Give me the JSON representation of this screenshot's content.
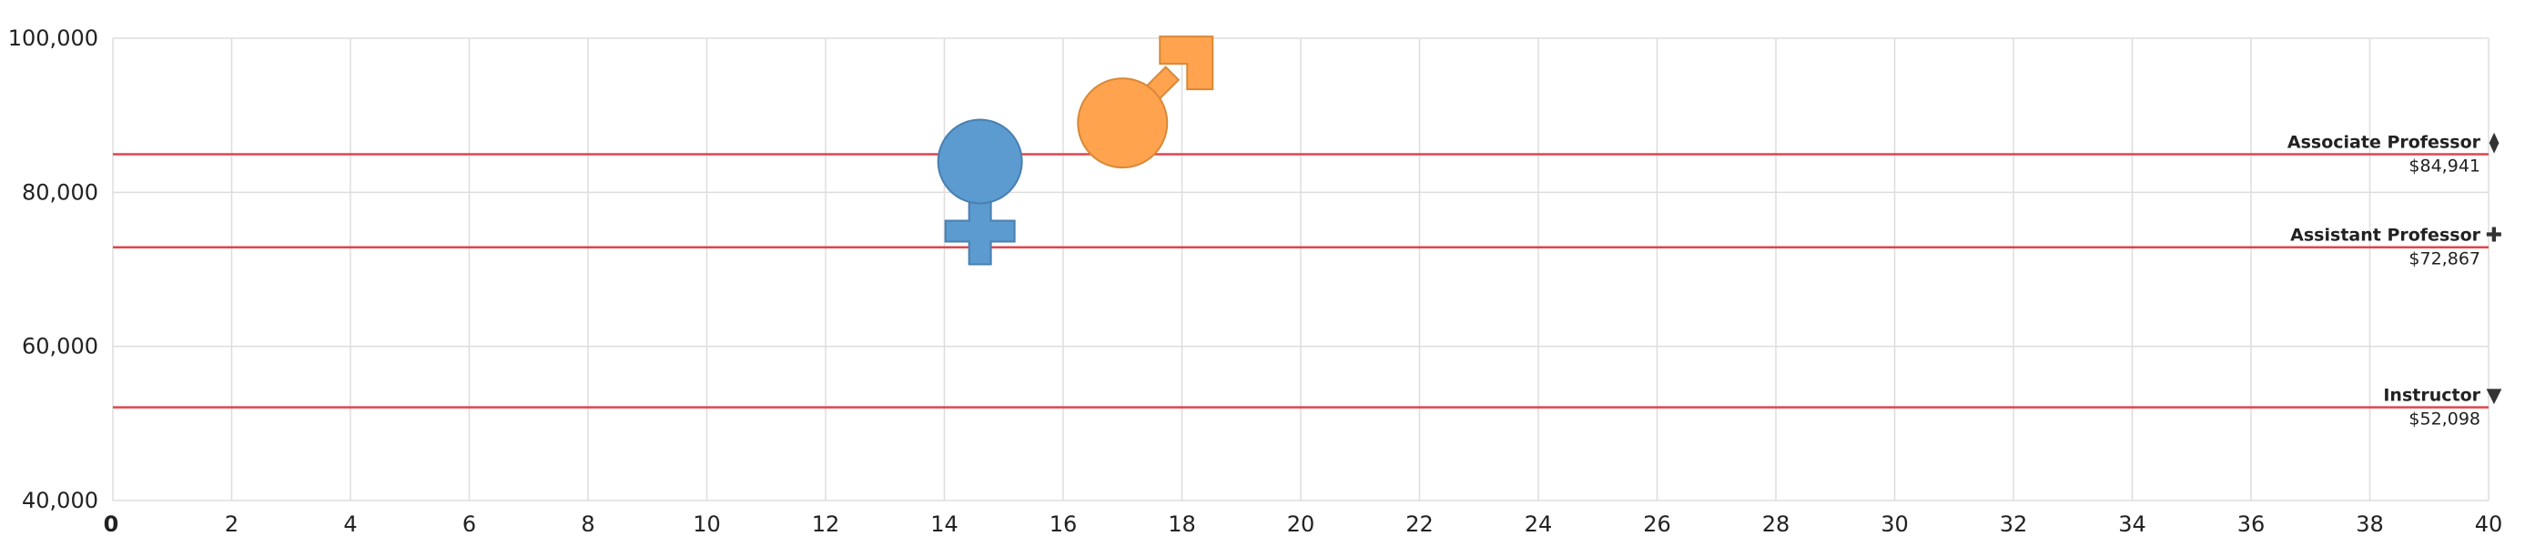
{
  "chart_data": {
    "type": "scatter",
    "title": "",
    "xlabel": "",
    "ylabel": "",
    "xlim": [
      0,
      40
    ],
    "ylim": [
      40000,
      100000
    ],
    "x_ticks": [
      0,
      2,
      4,
      6,
      8,
      10,
      12,
      14,
      16,
      18,
      20,
      22,
      24,
      26,
      28,
      30,
      32,
      34,
      36,
      38,
      40
    ],
    "x_tick_labels": [
      "0",
      "2",
      "4",
      "6",
      "8",
      "10",
      "12",
      "14",
      "16",
      "18",
      "20",
      "22",
      "24",
      "26",
      "28",
      "30",
      "32",
      "34",
      "36",
      "38",
      "40"
    ],
    "y_ticks": [
      40000,
      60000,
      80000,
      100000
    ],
    "y_tick_labels": [
      "40,000",
      "60,000",
      "80,000",
      "100,000"
    ],
    "grid": true,
    "points": [
      {
        "marker": "female-symbol",
        "x": 14.6,
        "y": 84000,
        "color": "#5b9bcf"
      },
      {
        "marker": "male-symbol",
        "x": 17.0,
        "y": 89000,
        "color": "#ffa34f"
      }
    ],
    "reference_lines": [
      {
        "label": "Associate Professor",
        "value_label": "$84,941",
        "y": 84941,
        "icon": "diamond-icon",
        "glyph": "⧫"
      },
      {
        "label": "Assistant Professor",
        "value_label": "$72,867",
        "y": 72867,
        "icon": "plus-icon",
        "glyph": "✚"
      },
      {
        "label": "Instructor",
        "value_label": "$52,098",
        "y": 52098,
        "icon": "triangle-down-icon",
        "glyph": "▼"
      }
    ],
    "colors": {
      "grid": "#dddddd",
      "reference_line": "#e0454c",
      "axis": "#cccccc",
      "text": "#222222"
    }
  }
}
